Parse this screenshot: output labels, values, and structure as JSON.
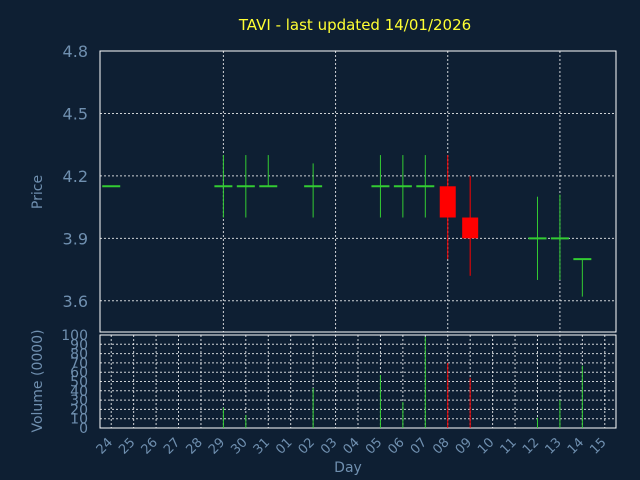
{
  "chart_data": {
    "type": "candlestick",
    "title": "TAVI - last updated 14/01/2026",
    "xlabel": "Day",
    "price_panel": {
      "ylabel": "Price",
      "ylim": [
        3.45,
        4.8
      ],
      "yticks": [
        "4.8",
        "4.5",
        "4.2",
        "3.9",
        "3.6"
      ],
      "grid": true
    },
    "volume_panel": {
      "ylabel": "Volume (0000)",
      "ylim": [
        0,
        100
      ],
      "yticks": [
        "100",
        "90",
        "80",
        "70",
        "60",
        "50",
        "40",
        "30",
        "20",
        "10",
        "0"
      ],
      "grid": true
    },
    "x_tick_labels": [
      "24",
      "25",
      "26",
      "27",
      "28",
      "29",
      "30",
      "31",
      "01",
      "02",
      "03",
      "04",
      "05",
      "06",
      "07",
      "08",
      "09",
      "10",
      "11",
      "12",
      "13",
      "14",
      "15"
    ],
    "colors": {
      "up": "#33cc33",
      "down": "#ff0000",
      "grid": "#ffffff",
      "background": "#0e1f33",
      "title": "#ffff33",
      "text": "#6f8faf"
    },
    "candles": [
      {
        "day": "24",
        "open": 4.15,
        "high": 4.15,
        "low": 4.15,
        "close": 4.15,
        "volume": 0
      },
      {
        "day": "29",
        "open": 4.15,
        "high": 4.3,
        "low": 4.0,
        "close": 4.15,
        "volume": 22
      },
      {
        "day": "30",
        "open": 4.15,
        "high": 4.3,
        "low": 4.0,
        "close": 4.15,
        "volume": 14
      },
      {
        "day": "31",
        "open": 4.15,
        "high": 4.3,
        "low": 4.15,
        "close": 4.15,
        "volume": 0
      },
      {
        "day": "02",
        "open": 4.15,
        "high": 4.26,
        "low": 4.0,
        "close": 4.15,
        "volume": 43
      },
      {
        "day": "05",
        "open": 4.15,
        "high": 4.3,
        "low": 4.0,
        "close": 4.15,
        "volume": 57
      },
      {
        "day": "06",
        "open": 4.15,
        "high": 4.3,
        "low": 4.0,
        "close": 4.15,
        "volume": 28
      },
      {
        "day": "07",
        "open": 4.15,
        "high": 4.3,
        "low": 4.0,
        "close": 4.15,
        "volume": 98
      },
      {
        "day": "08",
        "open": 4.15,
        "high": 4.3,
        "low": 3.8,
        "close": 4.0,
        "volume": 70
      },
      {
        "day": "09",
        "open": 4.0,
        "high": 4.2,
        "low": 3.72,
        "close": 3.9,
        "volume": 54
      },
      {
        "day": "12",
        "open": 3.9,
        "high": 4.1,
        "low": 3.7,
        "close": 3.9,
        "volume": 11
      },
      {
        "day": "13",
        "open": 3.9,
        "high": 4.11,
        "low": 3.7,
        "close": 3.9,
        "volume": 30
      },
      {
        "day": "14",
        "open": 3.8,
        "high": 3.8,
        "low": 3.62,
        "close": 3.8,
        "volume": 67
      }
    ]
  }
}
